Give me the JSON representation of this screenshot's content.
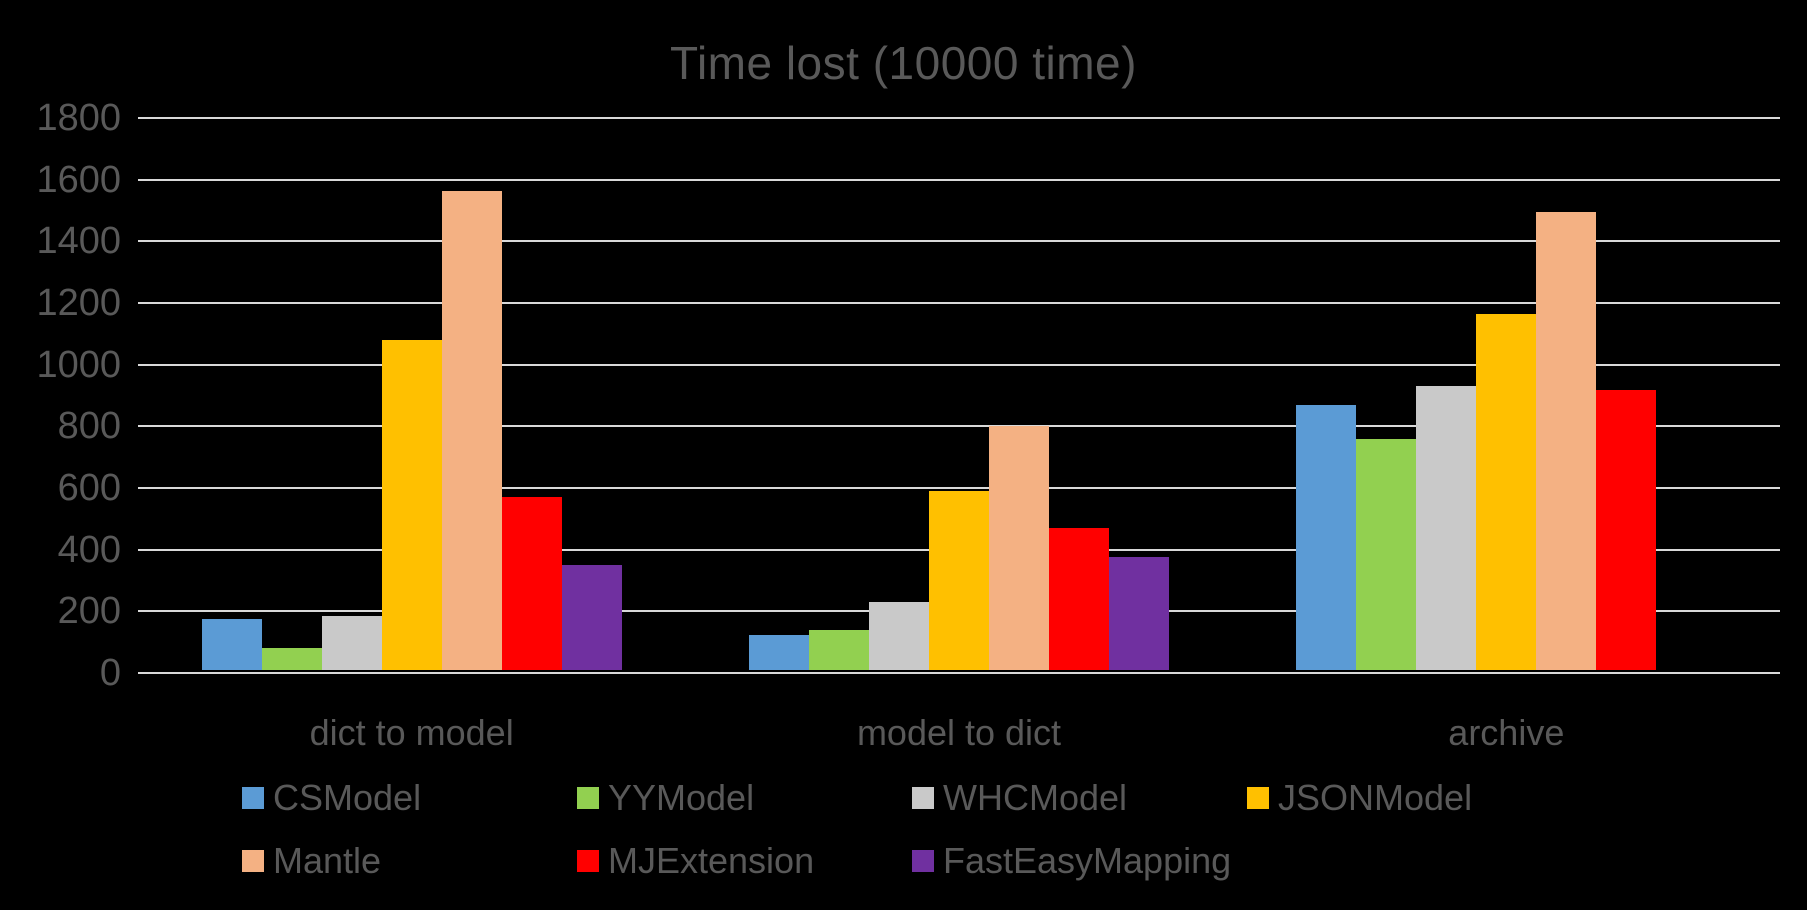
{
  "chart_data": {
    "type": "bar",
    "title": "Time lost (10000 time)",
    "categories": [
      "dict to model",
      "model to dict",
      "archive"
    ],
    "series": [
      {
        "name": "CSModel",
        "color": "#5B9BD5",
        "values": [
          165,
          112,
          858
        ]
      },
      {
        "name": "YYModel",
        "color": "#92D050",
        "values": [
          72,
          130,
          750
        ]
      },
      {
        "name": "WHCModel",
        "color": "#C9C9C9",
        "values": [
          175,
          222,
          922
        ]
      },
      {
        "name": "JSONModel",
        "color": "#FFC000",
        "values": [
          1070,
          580,
          1155
        ]
      },
      {
        "name": "Mantle",
        "color": "#F4B183",
        "values": [
          1555,
          790,
          1487
        ]
      },
      {
        "name": "MJExtension",
        "color": "#FF0000",
        "values": [
          560,
          462,
          908
        ]
      },
      {
        "name": "FastEasyMapping",
        "color": "#7030A0",
        "values": [
          340,
          365,
          0
        ]
      }
    ],
    "ylim": [
      0,
      1800
    ],
    "yticks": [
      0,
      200,
      400,
      600,
      800,
      1000,
      1200,
      1400,
      1600,
      1800
    ],
    "grid": true,
    "legend_position": "bottom",
    "background_color": "#000000",
    "text_color": "#595959",
    "gridline_color": "#D9D9D9"
  }
}
